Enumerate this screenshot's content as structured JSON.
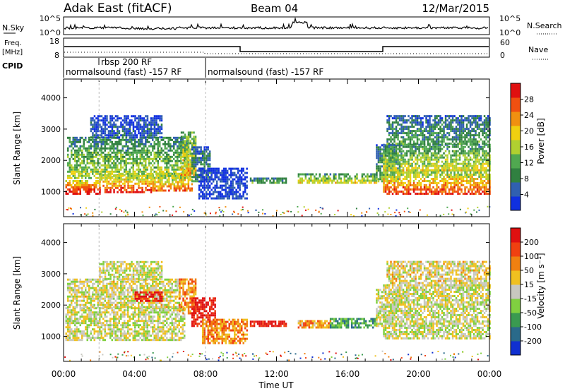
{
  "header": {
    "station": "Adak East (fitACF)",
    "beam": "Beam 04",
    "date": "12/Mar/2015"
  },
  "aux_panel": {
    "nsky_label": "N.Sky",
    "nsky_ticks": [
      "10^5",
      "10^0"
    ],
    "nsearch_label": "N.Search",
    "nsearch_ticks": [
      "10^5",
      "10^0"
    ],
    "freq_label_1": "Freq.",
    "freq_label_2": "[MHz]",
    "freq_ticks": [
      "18",
      "8"
    ],
    "nave_label": "Nave",
    "nave_ticks": [
      "60",
      "0"
    ],
    "cpid_label": "CPID",
    "cpid_entries": [
      {
        "text": "normalsound (fast) -157 RF",
        "start_hour": 0
      },
      {
        "text": "rbsp 200 RF",
        "start_hour": 2
      },
      {
        "text": "normalsound (fast) -157 RF",
        "start_hour": 8
      }
    ]
  },
  "chart_data": [
    {
      "type": "heatmap",
      "ylabel": "Slant Range [km]",
      "xlabel": "Time UT",
      "x_ticks": [
        "00:00",
        "04:00",
        "08:00",
        "12:00",
        "16:00",
        "20:00",
        "00:00"
      ],
      "x_range_hours": [
        0,
        24
      ],
      "y_ticks": [
        1000,
        2000,
        3000,
        4000
      ],
      "y_range": [
        200,
        4600
      ],
      "colorbar": {
        "label": "Power [dB]",
        "ticks": [
          4,
          8,
          12,
          16,
          20,
          24,
          28
        ],
        "range": [
          0,
          32
        ],
        "colors": [
          "#1030e0",
          "#3060b0",
          "#308040",
          "#50a850",
          "#b0d030",
          "#f0d010",
          "#f09010",
          "#f05010",
          "#e01010"
        ]
      },
      "bands": [
        {
          "t0": 0.1,
          "t1": 2.0,
          "r0": 900,
          "r1": 1350,
          "level": 0.88
        },
        {
          "t0": 2.0,
          "t1": 5.0,
          "r0": 950,
          "r1": 1500,
          "level": 0.8
        },
        {
          "t0": 5.0,
          "t1": 7.2,
          "r0": 1000,
          "r1": 1550,
          "level": 0.7
        },
        {
          "t0": 0.2,
          "t1": 7.0,
          "r0": 1400,
          "r1": 2700,
          "level": 0.45
        },
        {
          "t0": 1.5,
          "t1": 5.5,
          "r0": 2700,
          "r1": 3400,
          "level": 0.15
        },
        {
          "t0": 6.6,
          "t1": 7.4,
          "r0": 1500,
          "r1": 2900,
          "level": 0.6
        },
        {
          "t0": 7.2,
          "t1": 8.2,
          "r0": 1300,
          "r1": 2400,
          "level": 0.3
        },
        {
          "t0": 7.6,
          "t1": 10.3,
          "r0": 750,
          "r1": 1700,
          "level": 0.08
        },
        {
          "t0": 10.5,
          "t1": 12.5,
          "r0": 1250,
          "r1": 1450,
          "level": 0.3
        },
        {
          "t0": 13.2,
          "t1": 17.6,
          "r0": 1250,
          "r1": 1550,
          "level": 0.5
        },
        {
          "t0": 17.6,
          "t1": 19.0,
          "r0": 1300,
          "r1": 2500,
          "level": 0.35
        },
        {
          "t0": 18.0,
          "t1": 24.0,
          "r0": 900,
          "r1": 1650,
          "level": 0.78
        },
        {
          "t0": 18.0,
          "t1": 24.0,
          "r0": 1650,
          "r1": 2500,
          "level": 0.5
        },
        {
          "t0": 18.2,
          "t1": 24.0,
          "r0": 2500,
          "r1": 3400,
          "level": 0.3
        }
      ]
    },
    {
      "type": "heatmap",
      "ylabel": "Slant Range [km]",
      "xlabel": "Time UT",
      "x_ticks": [
        "00:00",
        "04:00",
        "08:00",
        "12:00",
        "16:00",
        "20:00",
        "00:00"
      ],
      "x_range_hours": [
        0,
        24
      ],
      "y_ticks": [
        1000,
        2000,
        3000,
        4000
      ],
      "y_range": [
        200,
        4600
      ],
      "colorbar": {
        "label": "Velocity [m s⁻¹]",
        "ticks": [
          200,
          100,
          50,
          15,
          -15,
          -50,
          -100,
          -200
        ],
        "range": [
          -250,
          250
        ],
        "colors": [
          "#1030d0",
          "#2a6a8a",
          "#3a9a50",
          "#80d040",
          "#c8c8c0",
          "#f0c020",
          "#f08010",
          "#f04010",
          "#e01010"
        ]
      },
      "bands": [
        {
          "t0": 0.1,
          "t1": 6.8,
          "r0": 850,
          "r1": 1900,
          "level": 0.5
        },
        {
          "t0": 0.2,
          "t1": 6.5,
          "r0": 1900,
          "r1": 2800,
          "level": 0.52
        },
        {
          "t0": 2.0,
          "t1": 5.5,
          "r0": 2800,
          "r1": 3400,
          "level": 0.5
        },
        {
          "t0": 4.0,
          "t1": 5.5,
          "r0": 2100,
          "r1": 2400,
          "level": 0.92
        },
        {
          "t0": 6.5,
          "t1": 7.4,
          "r0": 1700,
          "r1": 2800,
          "level": 0.7
        },
        {
          "t0": 7.2,
          "t1": 8.5,
          "r0": 1300,
          "r1": 2200,
          "level": 0.95
        },
        {
          "t0": 7.8,
          "t1": 10.3,
          "r0": 750,
          "r1": 1500,
          "level": 0.72
        },
        {
          "t0": 10.5,
          "t1": 12.5,
          "r0": 1300,
          "r1": 1450,
          "level": 0.95
        },
        {
          "t0": 13.2,
          "t1": 15.0,
          "r0": 1250,
          "r1": 1500,
          "level": 0.7
        },
        {
          "t0": 15.0,
          "t1": 17.6,
          "r0": 1250,
          "r1": 1550,
          "level": 0.3
        },
        {
          "t0": 17.6,
          "t1": 19.0,
          "r0": 1300,
          "r1": 2500,
          "level": 0.5
        },
        {
          "t0": 18.0,
          "t1": 24.0,
          "r0": 900,
          "r1": 2600,
          "level": 0.5
        },
        {
          "t0": 18.2,
          "t1": 24.0,
          "r0": 2600,
          "r1": 3400,
          "level": 0.55
        }
      ]
    }
  ]
}
